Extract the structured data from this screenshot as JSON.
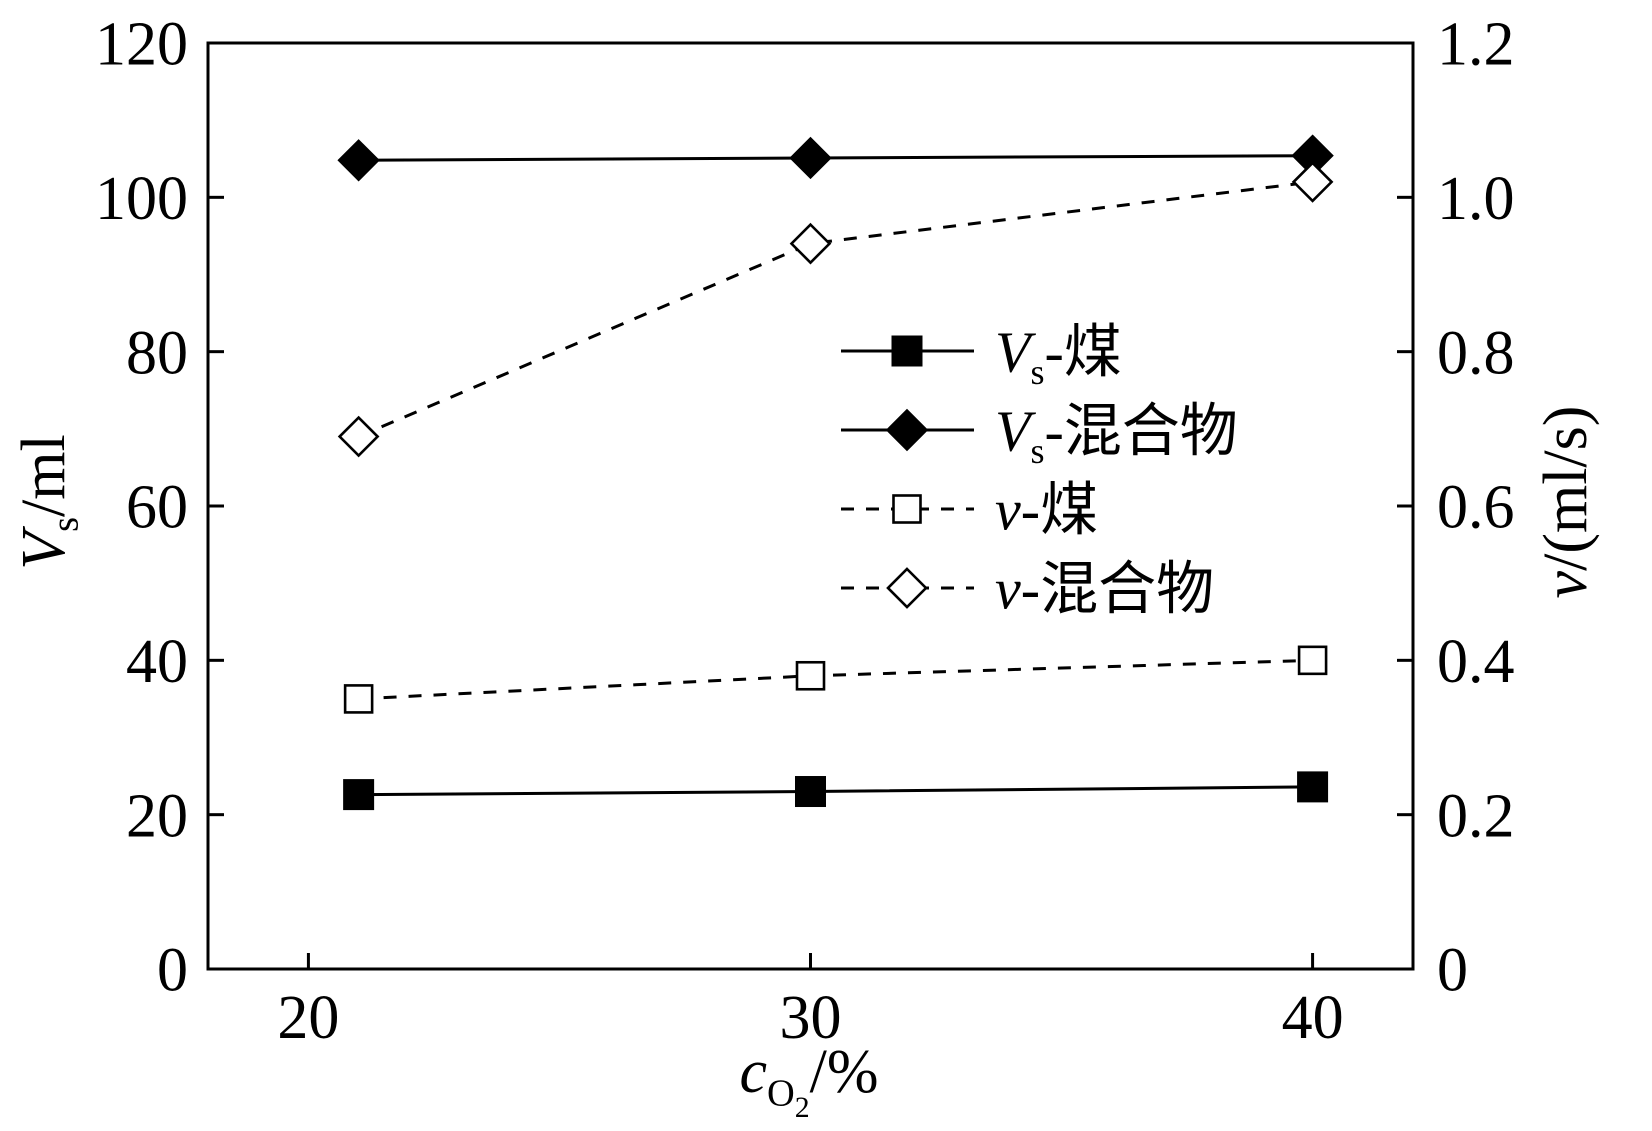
{
  "chart_data": {
    "type": "line",
    "x": [
      21,
      30,
      40
    ],
    "xlim": [
      18,
      42
    ],
    "ylim": [
      0,
      120
    ],
    "y2lim": [
      0,
      1.2
    ],
    "xticks": [
      {
        "value": 20,
        "label": "20"
      },
      {
        "value": 30,
        "label": "30"
      },
      {
        "value": 40,
        "label": "40"
      }
    ],
    "yticks": [
      {
        "value": 0,
        "label": "0"
      },
      {
        "value": 20,
        "label": "20"
      },
      {
        "value": 40,
        "label": "40"
      },
      {
        "value": 60,
        "label": "60"
      },
      {
        "value": 80,
        "label": "80"
      },
      {
        "value": 100,
        "label": "100"
      },
      {
        "value": 120,
        "label": "120"
      }
    ],
    "y2ticks": [
      {
        "value": 0,
        "label": "0"
      },
      {
        "value": 0.2,
        "label": "0.2"
      },
      {
        "value": 0.4,
        "label": "0.4"
      },
      {
        "value": 0.6,
        "label": "0.6"
      },
      {
        "value": 0.8,
        "label": "0.8"
      },
      {
        "value": 1.0,
        "label": "1.0"
      },
      {
        "value": 1.2,
        "label": "1.2"
      }
    ],
    "xlabel": "cO2/%",
    "xlabel_segments": [
      {
        "text": "c",
        "italic": true,
        "level": 0
      },
      {
        "text": "O",
        "italic": false,
        "level": 1
      },
      {
        "text": "2",
        "italic": false,
        "level": 2
      },
      {
        "text": "/%",
        "italic": false,
        "level": 0
      }
    ],
    "ylabel": "Vs/ml",
    "ylabel_segments": [
      {
        "text": "V",
        "italic": true,
        "level": 0
      },
      {
        "text": "s",
        "italic": false,
        "level": 1
      },
      {
        "text": "/ml",
        "italic": false,
        "level": 0
      }
    ],
    "y2label": "v/(ml/s)",
    "y2label_segments": [
      {
        "text": "v",
        "italic": true,
        "level": 0
      },
      {
        "text": "/(ml/s)",
        "italic": false,
        "level": 0
      }
    ],
    "grid": false,
    "legend_position": "center-right",
    "series": [
      {
        "name": "Vs-煤",
        "name_segments": [
          {
            "text": "V",
            "italic": true,
            "level": 0
          },
          {
            "text": "s",
            "italic": false,
            "level": 1
          },
          {
            "text": "-煤",
            "italic": false,
            "level": 0
          }
        ],
        "axis": "left",
        "line_style": "solid",
        "marker": "square",
        "marker_filled": true,
        "values": [
          22.6,
          23.0,
          23.6
        ]
      },
      {
        "name": "Vs-混合物",
        "name_segments": [
          {
            "text": "V",
            "italic": true,
            "level": 0
          },
          {
            "text": "s",
            "italic": false,
            "level": 1
          },
          {
            "text": "-混合物",
            "italic": false,
            "level": 0
          }
        ],
        "axis": "left",
        "line_style": "solid",
        "marker": "diamond",
        "marker_filled": true,
        "values": [
          104.8,
          105.1,
          105.4
        ]
      },
      {
        "name": "v-煤",
        "name_segments": [
          {
            "text": "v",
            "italic": true,
            "level": 0
          },
          {
            "text": "-煤",
            "italic": false,
            "level": 0
          }
        ],
        "axis": "right",
        "line_style": "dashed",
        "marker": "square",
        "marker_filled": false,
        "values": [
          0.35,
          0.38,
          0.4
        ]
      },
      {
        "name": "v-混合物",
        "name_segments": [
          {
            "text": "v",
            "italic": true,
            "level": 0
          },
          {
            "text": "-混合物",
            "italic": false,
            "level": 0
          }
        ],
        "axis": "right",
        "line_style": "dashed",
        "marker": "diamond",
        "marker_filled": false,
        "values": [
          0.69,
          0.94,
          1.02
        ]
      }
    ]
  },
  "colors": {
    "ink": "#000000",
    "background": "#ffffff"
  }
}
